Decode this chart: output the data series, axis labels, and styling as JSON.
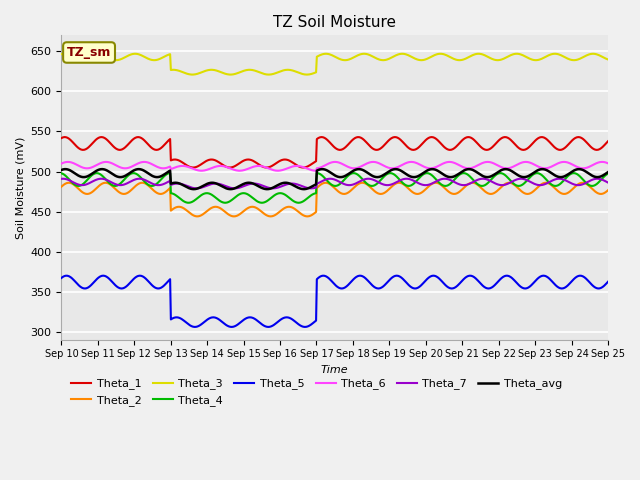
{
  "title": "TZ Soil Moisture",
  "xlabel": "Time",
  "ylabel": "Soil Moisture (mV)",
  "ylim": [
    290,
    670
  ],
  "xlim": [
    0,
    360
  ],
  "background_color": "#f0f0f0",
  "plot_bg_color": "#e8e8e8",
  "grid_color": "#ffffff",
  "series_order": [
    "Theta_1",
    "Theta_2",
    "Theta_3",
    "Theta_4",
    "Theta_5",
    "Theta_6",
    "Theta_7",
    "Theta_avg"
  ],
  "series": {
    "Theta_1": {
      "color": "#dd0000",
      "base": 535,
      "amp": 8,
      "freq": 0.26,
      "phase": 1.0,
      "anomaly_start": 72,
      "anomaly_end": 168,
      "anomaly_base": 510,
      "anomaly_amp": 5
    },
    "Theta_2": {
      "color": "#ff8800",
      "base": 479,
      "amp": 7,
      "freq": 0.26,
      "phase": 0.3,
      "anomaly_start": 72,
      "anomaly_end": 168,
      "anomaly_base": 450,
      "anomaly_amp": 6
    },
    "Theta_3": {
      "color": "#dddd00",
      "base": 643,
      "amp": 4,
      "freq": 0.25,
      "phase": 2.0,
      "anomaly_start": 72,
      "anomaly_end": 168,
      "anomaly_base": 624,
      "anomaly_amp": 3
    },
    "Theta_4": {
      "color": "#00bb00",
      "base": 490,
      "amp": 8,
      "freq": 0.26,
      "phase": 1.8,
      "anomaly_start": 72,
      "anomaly_end": 168,
      "anomaly_base": 467,
      "anomaly_amp": 6
    },
    "Theta_5": {
      "color": "#0000ee",
      "base": 362,
      "amp": 8,
      "freq": 0.26,
      "phase": 0.7,
      "anomaly_start": 72,
      "anomaly_end": 168,
      "anomaly_base": 312,
      "anomaly_amp": 6
    },
    "Theta_6": {
      "color": "#ff44ff",
      "base": 508,
      "amp": 4,
      "freq": 0.25,
      "phase": 0.5,
      "anomaly_start": 72,
      "anomaly_end": 168,
      "anomaly_base": 504,
      "anomaly_amp": 3
    },
    "Theta_7": {
      "color": "#9900cc",
      "base": 487,
      "amp": 4,
      "freq": 0.25,
      "phase": 1.3,
      "anomaly_start": 72,
      "anomaly_end": 168,
      "anomaly_base": 482,
      "anomaly_amp": 3
    },
    "Theta_avg": {
      "color": "#000000",
      "base": 498,
      "amp": 5,
      "freq": 0.26,
      "phase": 0.9,
      "anomaly_start": 72,
      "anomaly_end": 168,
      "anomaly_base": 482,
      "anomaly_amp": 4
    }
  },
  "xticks": [
    0,
    24,
    48,
    72,
    96,
    120,
    144,
    168,
    192,
    216,
    240,
    264,
    288,
    312,
    336,
    360
  ],
  "xtick_labels": [
    "Sep 10",
    "Sep 11",
    "Sep 12",
    "Sep 13",
    "Sep 14",
    "Sep 15",
    "Sep 16",
    "Sep 17",
    "Sep 18",
    "Sep 19",
    "Sep 20",
    "Sep 21",
    "Sep 22",
    "Sep 23",
    "Sep 24",
    "Sep 25"
  ],
  "yticks": [
    300,
    350,
    400,
    450,
    500,
    550,
    600,
    650
  ],
  "legend_box_color": "#ffffcc",
  "legend_box_edge": "#888800",
  "TZ_sm_label_color": "#880000"
}
